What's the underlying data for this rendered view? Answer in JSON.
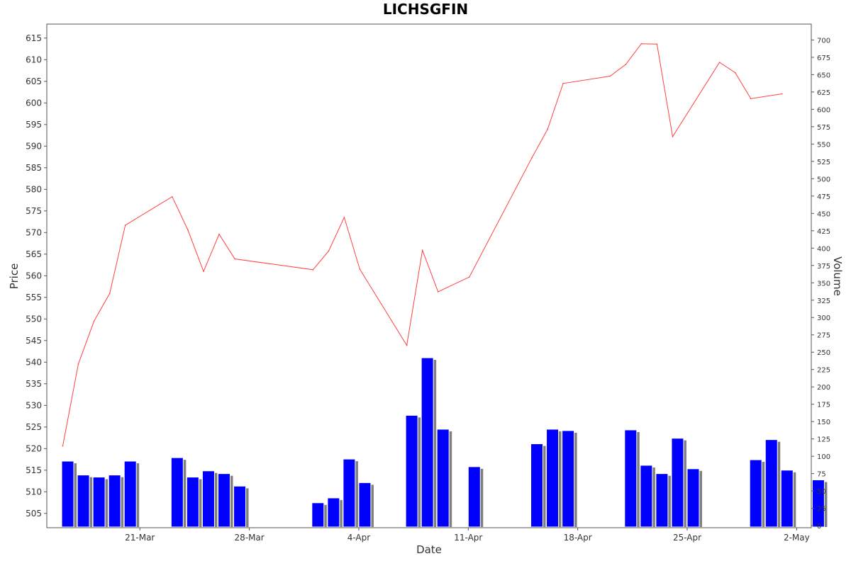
{
  "chart_data": {
    "type": "bar+line",
    "title": "LICHSGFIN",
    "xlabel": "Date",
    "ylabel": "Price",
    "y2label": "Volume",
    "x_tick_labels": [
      "21-Mar",
      "28-Mar",
      "4-Apr",
      "11-Apr",
      "18-Apr",
      "25-Apr",
      "2-May"
    ],
    "ylim": [
      501.2,
      616.9
    ],
    "y_ticks": [
      505,
      510,
      515,
      520,
      525,
      530,
      535,
      540,
      545,
      550,
      555,
      560,
      565,
      570,
      575,
      580,
      585,
      590,
      595,
      600,
      605,
      610,
      615
    ],
    "y2lim": [
      0,
      719
    ],
    "y2_ticks": [
      0,
      25,
      50,
      75,
      100,
      125,
      150,
      175,
      200,
      225,
      250,
      275,
      300,
      325,
      350,
      375,
      400,
      425,
      450,
      475,
      500,
      525,
      550,
      575,
      600,
      625,
      650,
      675,
      700
    ],
    "grid": false,
    "colors": {
      "price": "#ff4040",
      "volume": "#0000ff",
      "volume_shadow": "#808080"
    },
    "series": [
      {
        "name": "Price",
        "type": "line",
        "points": [
          [
            "2022-03-16",
            520.6
          ],
          [
            "2022-03-17",
            539.6
          ],
          [
            "2022-03-18",
            549.5
          ],
          [
            "2022-03-19",
            555.9
          ],
          [
            "2022-03-20",
            571.7
          ],
          [
            "2022-03-23",
            578.3
          ],
          [
            "2022-03-24",
            570.6
          ],
          [
            "2022-03-25",
            561.0
          ],
          [
            "2022-03-26",
            569.6
          ],
          [
            "2022-03-27",
            563.9
          ],
          [
            "2022-04-01",
            561.4
          ],
          [
            "2022-04-02",
            565.7
          ],
          [
            "2022-04-03",
            573.5
          ],
          [
            "2022-04-04",
            561.5
          ],
          [
            "2022-04-07",
            543.9
          ],
          [
            "2022-04-08",
            565.9
          ],
          [
            "2022-04-09",
            556.3
          ],
          [
            "2022-04-11",
            559.7
          ],
          [
            "2022-04-15",
            587.3
          ],
          [
            "2022-04-16",
            593.9
          ],
          [
            "2022-04-17",
            604.5
          ],
          [
            "2022-04-20",
            606.2
          ],
          [
            "2022-04-21",
            608.9
          ],
          [
            "2022-04-22",
            613.7
          ],
          [
            "2022-04-23",
            613.6
          ],
          [
            "2022-04-24",
            592.2
          ],
          [
            "2022-04-27",
            609.4
          ],
          [
            "2022-04-28",
            607.0
          ],
          [
            "2022-04-29",
            601.0
          ],
          [
            "2022-05-01",
            602.1
          ]
        ]
      },
      {
        "name": "Volume",
        "type": "bar",
        "points": [
          [
            "2022-03-16",
            93
          ],
          [
            "2022-03-17",
            73
          ],
          [
            "2022-03-18",
            70
          ],
          [
            "2022-03-19",
            73
          ],
          [
            "2022-03-20",
            93
          ],
          [
            "2022-03-23",
            98
          ],
          [
            "2022-03-24",
            70
          ],
          [
            "2022-03-25",
            79
          ],
          [
            "2022-03-26",
            75
          ],
          [
            "2022-03-27",
            57
          ],
          [
            "2022-04-01",
            33
          ],
          [
            "2022-04-02",
            40
          ],
          [
            "2022-04-03",
            96
          ],
          [
            "2022-04-04",
            62
          ],
          [
            "2022-04-07",
            159
          ],
          [
            "2022-04-08",
            242
          ],
          [
            "2022-04-09",
            139
          ],
          [
            "2022-04-11",
            85
          ],
          [
            "2022-04-15",
            118
          ],
          [
            "2022-04-16",
            139
          ],
          [
            "2022-04-17",
            137
          ],
          [
            "2022-04-21",
            138
          ],
          [
            "2022-04-22",
            87
          ],
          [
            "2022-04-23",
            75
          ],
          [
            "2022-04-24",
            126
          ],
          [
            "2022-04-25",
            82
          ],
          [
            "2022-04-29",
            95
          ],
          [
            "2022-04-30",
            124
          ],
          [
            "2022-05-01",
            80
          ],
          [
            "2022-05-03",
            66
          ]
        ]
      }
    ]
  }
}
